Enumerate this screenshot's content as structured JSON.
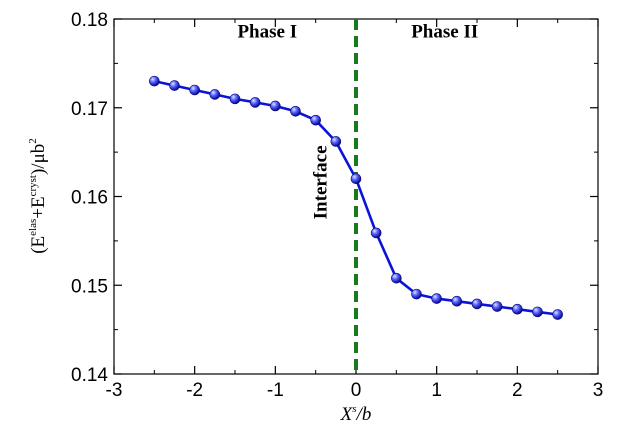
{
  "chart_data": {
    "type": "line",
    "x": [
      -2.5,
      -2.25,
      -2.0,
      -1.75,
      -1.5,
      -1.25,
      -1.0,
      -0.75,
      -0.5,
      -0.25,
      0.0,
      0.25,
      0.5,
      0.75,
      1.0,
      1.25,
      1.5,
      1.75,
      2.0,
      2.25,
      2.5
    ],
    "series": [
      {
        "values": [
          0.173,
          0.1725,
          0.172,
          0.1715,
          0.171,
          0.1706,
          0.1702,
          0.1696,
          0.1686,
          0.1662,
          0.162,
          0.1559,
          0.1508,
          0.149,
          0.1485,
          0.1482,
          0.1479,
          0.1476,
          0.1473,
          0.147,
          0.1467
        ],
        "color": "#0a14d8",
        "marker": "sphere"
      }
    ],
    "xlim": [
      -3,
      3
    ],
    "ylim": [
      0.14,
      0.18
    ],
    "xticks": [
      "-3",
      "-2",
      "-1",
      "0",
      "1",
      "2",
      "3"
    ],
    "yticks": [
      "0.14",
      "0.15",
      "0.16",
      "0.17",
      "0.18"
    ],
    "xlabel": {
      "base": "X",
      "sup": "s",
      "tail": "/b"
    },
    "ylabel": {
      "open": "(E",
      "sup1": "elas",
      "mid": "+E",
      "sup2": "cryst",
      "close": ")/μb",
      "sup3": "2"
    },
    "regions": [
      {
        "label": "Phase I",
        "x": -1.1,
        "y": 0.1787
      },
      {
        "label": "Phase II",
        "x": 1.1,
        "y": 0.1787
      }
    ],
    "interface": {
      "x": 0,
      "label": "Interface",
      "color": "#1a7a1a",
      "label_x": -0.28,
      "label_y": 0.1608
    },
    "grid": false,
    "legend": "none"
  }
}
